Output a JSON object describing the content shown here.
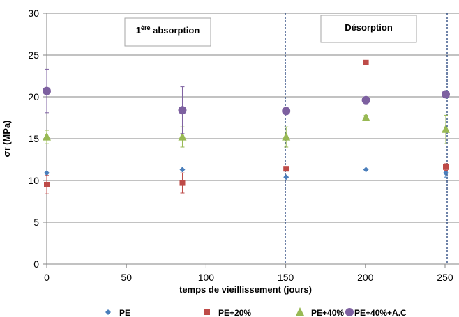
{
  "chart_data": {
    "type": "scatter",
    "xlabel": "temps de vieillissement (jours)",
    "ylabel": "σr (MPa)",
    "xlim": [
      0,
      250
    ],
    "ylim": [
      0,
      30
    ],
    "xticks": [
      0,
      50,
      100,
      150,
      200,
      250
    ],
    "yticks": [
      0,
      5,
      10,
      15,
      20,
      25,
      30
    ],
    "grid": "horizontal",
    "legend_position": "bottom",
    "annotations": [
      {
        "base": "1",
        "sup": "ère",
        "text": " absorption"
      },
      {
        "base": "Désorption",
        "sup": "",
        "text": ""
      }
    ],
    "vlines": [
      150,
      250
    ],
    "series": [
      {
        "name": "PE",
        "marker": "diamond",
        "color": "#4a7ebb",
        "points": [
          [
            0,
            10.9,
            0
          ],
          [
            85,
            11.3,
            0
          ],
          [
            150,
            10.4,
            0
          ],
          [
            200,
            11.3,
            0
          ],
          [
            250,
            10.9,
            0.5
          ]
        ]
      },
      {
        "name": "PE+20%",
        "marker": "square",
        "color": "#be4b48",
        "points": [
          [
            0,
            9.5,
            1.1
          ],
          [
            85,
            9.7,
            1.2
          ],
          [
            150,
            11.4,
            0
          ],
          [
            200,
            24.1,
            0
          ],
          [
            250,
            11.6,
            0.4
          ]
        ]
      },
      {
        "name": "PE+40%",
        "marker": "triangle",
        "color": "#98b954",
        "points": [
          [
            0,
            15.2,
            0.8
          ],
          [
            85,
            15.2,
            1.2
          ],
          [
            150,
            15.2,
            1.2
          ],
          [
            200,
            17.5,
            0.3
          ],
          [
            250,
            16.1,
            1.7
          ]
        ]
      },
      {
        "name": "PE+40%+A.C",
        "marker": "circle",
        "color": "#7d60a0",
        "points": [
          [
            0,
            20.7,
            2.6
          ],
          [
            85,
            18.4,
            2.8
          ],
          [
            150,
            18.3,
            0
          ],
          [
            200,
            19.6,
            0
          ],
          [
            250,
            20.3,
            0.3
          ]
        ]
      }
    ]
  }
}
